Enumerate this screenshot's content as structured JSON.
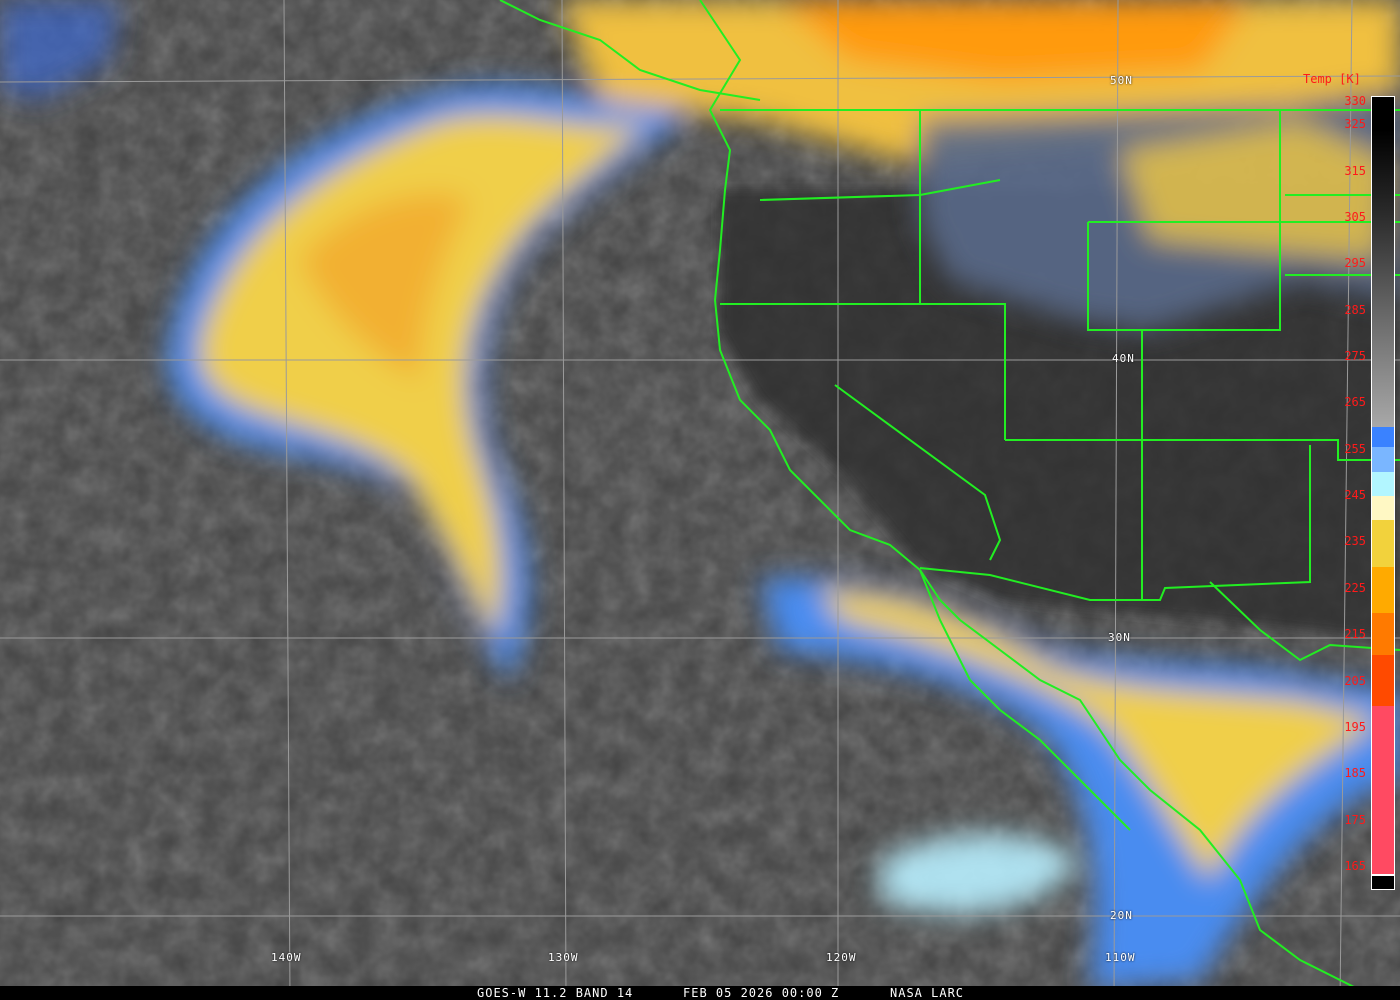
{
  "map": {
    "latitude_labels": [
      "50N",
      "40N",
      "30N",
      "20N"
    ],
    "longitude_labels": [
      "140W",
      "130W",
      "120W",
      "110W"
    ],
    "border_color": "#22ee22",
    "graticule_color": "#9a9a9a"
  },
  "colorbar": {
    "title": "Temp [K]",
    "ticks": [
      "330",
      "325",
      "315",
      "305",
      "295",
      "285",
      "275",
      "265",
      "255",
      "245",
      "235",
      "225",
      "215",
      "205",
      "195",
      "185",
      "175",
      "165"
    ],
    "color_steps": [
      {
        "from_k": 330,
        "to_k": 258,
        "color": "gradient #000000 to #a8a8a8"
      },
      {
        "from_k": 258,
        "to_k": 255,
        "color": "#3a82ff"
      },
      {
        "from_k": 255,
        "to_k": 249,
        "color": "#7ab6ff"
      },
      {
        "from_k": 249,
        "to_k": 244,
        "color": "#b2f6ff"
      },
      {
        "from_k": 244,
        "to_k": 240,
        "color": "#fff8c4"
      },
      {
        "from_k": 240,
        "to_k": 230,
        "color": "#f2d23c"
      },
      {
        "from_k": 230,
        "to_k": 220,
        "color": "#ffaa00"
      },
      {
        "from_k": 220,
        "to_k": 211,
        "color": "#ff7a00"
      },
      {
        "from_k": 211,
        "to_k": 200,
        "color": "#ff4a00"
      },
      {
        "from_k": 200,
        "to_k": 164,
        "color": "#ff4a62"
      },
      {
        "from_k": 164,
        "to_k": 163,
        "color": "#ffffff"
      },
      {
        "from_k": 163,
        "to_k": 160,
        "color": "#000000"
      }
    ]
  },
  "caption": {
    "satellite": "GOES-W 11.2 BAND 14",
    "datetime": "FEB 05 2026 00:00 Z",
    "source": "NASA LARC"
  }
}
